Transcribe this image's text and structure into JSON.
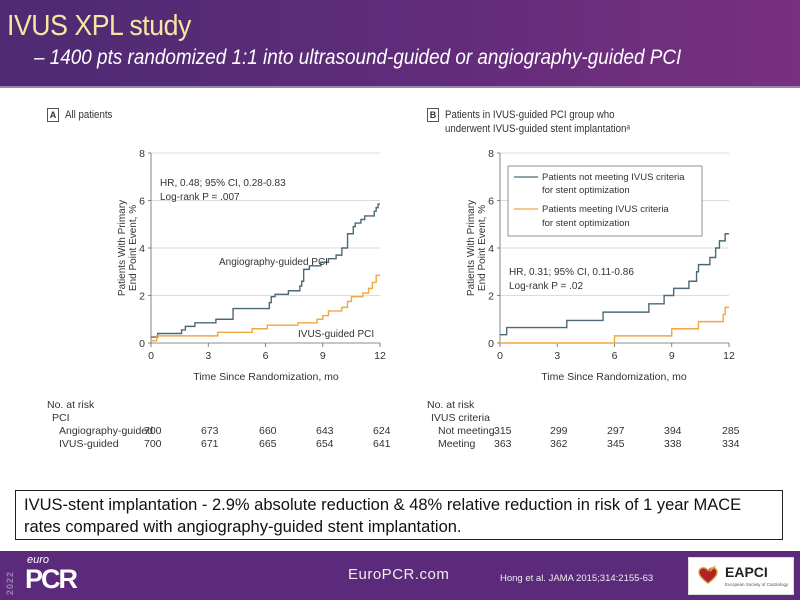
{
  "slide": {
    "title": "IVUS XPL study",
    "subtitle": "– 1400 pts randomized 1:1 into ultrasound-guided  or angiography-guided  PCI"
  },
  "callout": {
    "text": "IVUS-stent implantation - 2.9% absolute reduction & 48% relative reduction in risk of 1 year MACE rates compared with angiography-guided stent implantation."
  },
  "footer": {
    "year": "2022",
    "logo_small": "euro",
    "logo_big": "PCR",
    "site": "EuroPCR.com",
    "citation": "Hong et al. JAMA 2015;314:2155-63",
    "partner_logo": "EAPCI",
    "partner_sub": "European Society of Cardiology"
  },
  "colors": {
    "dark_series": "#4b6a78",
    "light_series": "#f0a742",
    "header_bg": "#5e2c7a",
    "title_color": "#f6e7a0"
  },
  "chart_data": [
    {
      "type": "line",
      "step": true,
      "panel_letter": "A",
      "panel_title": "All patients",
      "title": "All patients",
      "xlabel": "Time Since Randomization, mo",
      "ylabel_line1": "Patients With Primary",
      "ylabel_line2": "End Point Event, %",
      "ylabel": "Patients With Primary End Point Event, %",
      "xlim": [
        0,
        12
      ],
      "ylim": [
        0,
        8
      ],
      "xticks": [
        0,
        3,
        6,
        9,
        12
      ],
      "yticks": [
        0,
        2,
        4,
        6,
        8
      ],
      "grid": true,
      "annotation_line1": "HR, 0.48; 95% CI, 0.28-0.83",
      "annotation_line2": "Log-rank P = .007",
      "series": [
        {
          "name": "Angiography-guided PCI",
          "color": "#4b6a78",
          "x": [
            0,
            0.35,
            1.6,
            1.8,
            2.3,
            3.4,
            4.3,
            6.2,
            6.3,
            6.5,
            7.2,
            7.8,
            7.9,
            8.0,
            8.3,
            8.9,
            9.3,
            9.7,
            10.0,
            10.3,
            10.6,
            10.7,
            11.0,
            11.2,
            11.7,
            11.8,
            11.9,
            12.0
          ],
          "y": [
            0.25,
            0.4,
            0.55,
            0.7,
            0.85,
            1.0,
            1.45,
            1.7,
            1.95,
            2.05,
            2.2,
            2.4,
            2.6,
            3.1,
            3.25,
            3.4,
            3.55,
            3.7,
            4.0,
            4.6,
            4.9,
            5.05,
            5.2,
            5.35,
            5.55,
            5.7,
            5.85,
            5.85
          ]
        },
        {
          "name": "IVUS-guided PCI",
          "color": "#f0a742",
          "x": [
            0,
            0.3,
            3.5,
            5.3,
            6.1,
            7.7,
            8.7,
            9.0,
            9.3,
            10.0,
            10.3,
            10.5,
            11.1,
            11.4,
            11.6,
            11.8,
            12.0
          ],
          "y": [
            0.1,
            0.3,
            0.45,
            0.6,
            0.75,
            0.85,
            1.0,
            1.15,
            1.35,
            1.5,
            1.75,
            1.95,
            2.1,
            2.3,
            2.55,
            2.85,
            2.85
          ]
        }
      ],
      "series_labels": [
        "Angiography-guided PCI",
        "IVUS-guided PCI"
      ],
      "at_risk": {
        "heading": "No. at risk",
        "group": "PCI",
        "rows": [
          {
            "label": "Angiography-guided",
            "values": [
              "700",
              "673",
              "660",
              "643",
              "624"
            ]
          },
          {
            "label": "IVUS-guided",
            "values": [
              "700",
              "671",
              "665",
              "654",
              "641"
            ]
          }
        ]
      }
    },
    {
      "type": "line",
      "step": true,
      "panel_letter": "B",
      "panel_title_line1": "Patients in IVUS-guided PCI group who",
      "panel_title_line2": "underwent IVUS-guided stent implantationᵃ",
      "title": "Patients in IVUS-guided PCI group who underwent IVUS-guided stent implantation",
      "xlabel": "Time Since Randomization, mo",
      "ylabel_line1": "Patients With Primary",
      "ylabel_line2": "End Point Event, %",
      "ylabel": "Patients With Primary End Point Event, %",
      "xlim": [
        0,
        12
      ],
      "ylim": [
        0,
        8
      ],
      "xticks": [
        0,
        3,
        6,
        9,
        12
      ],
      "yticks": [
        0,
        2,
        4,
        6,
        8
      ],
      "grid": true,
      "legend_position": "top-left",
      "annotation_line1": "HR, 0.31; 95% CI, 0.11-0.86",
      "annotation_line2": "Log-rank P = .02",
      "series": [
        {
          "name": "Patients not meeting IVUS criteria for stent optimization",
          "legend_line1": "Patients not meeting IVUS criteria",
          "legend_line2": "for stent optimization",
          "color": "#4b6a78",
          "x": [
            0,
            0.35,
            3.5,
            5.4,
            7.8,
            8.6,
            9.1,
            9.9,
            10.3,
            10.4,
            11.0,
            11.3,
            11.5,
            11.8,
            12.0
          ],
          "y": [
            0.35,
            0.65,
            0.95,
            1.3,
            1.65,
            2.0,
            2.3,
            2.6,
            3.0,
            3.3,
            3.6,
            4.0,
            4.3,
            4.6,
            4.6
          ]
        },
        {
          "name": "Patients meeting IVUS criteria for stent optimization",
          "legend_line1": "Patients meeting IVUS criteria",
          "legend_line2": "for stent optimization",
          "color": "#f0a742",
          "x": [
            0,
            6.0,
            9.0,
            10.4,
            11.7,
            11.8,
            12.0
          ],
          "y": [
            0,
            0.3,
            0.6,
            0.9,
            1.2,
            1.5,
            1.5
          ]
        }
      ],
      "at_risk": {
        "heading": "No. at risk",
        "group": "IVUS criteria",
        "rows": [
          {
            "label": "Not meeting",
            "values": [
              "315",
              "299",
              "297",
              "394",
              "285"
            ]
          },
          {
            "label": "Meeting",
            "values": [
              "363",
              "362",
              "345",
              "338",
              "334"
            ]
          }
        ]
      }
    }
  ]
}
